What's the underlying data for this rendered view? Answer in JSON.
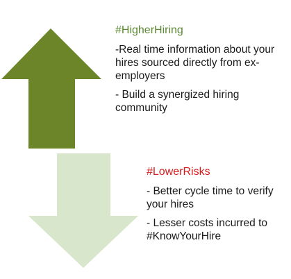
{
  "higher": {
    "heading": "#HigherHiring",
    "bullets": [
      "-Real time information about your hires sourced directly from ex-employers",
      "- Build a synergized hiring community"
    ]
  },
  "lower": {
    "heading": "#LowerRisks",
    "bullets": [
      "- Better cycle time to verify your hires",
      "- Lesser costs incurred to #KnowYourHire"
    ]
  },
  "colors": {
    "up_arrow": "#6b8528",
    "down_arrow": "#d8e6cc",
    "higher_heading": "#5c8a33",
    "lower_heading": "#d81c1c"
  }
}
